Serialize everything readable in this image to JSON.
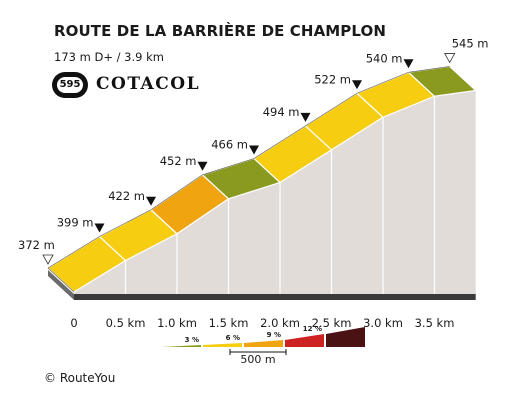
{
  "header": {
    "title": "ROUTE DE LA BARRIÈRE DE CHAMPLON",
    "subtitle": "173 m D+ / 3.9 km"
  },
  "logo": {
    "number": "595",
    "name": "COTACOL"
  },
  "credit": "© RouteYou",
  "colors": {
    "lt3": "#8a9a1f",
    "3to6": "#f6cd11",
    "6to9": "#f0a510",
    "9to12": "#cc2222",
    "gt12": "#4a1212",
    "side": "#e1dcd8",
    "base": "#3a3a3a"
  },
  "chart_data": {
    "type": "area",
    "xunit": "km",
    "yunit": "m",
    "distance_km": 3.9,
    "ascent_m": 173,
    "segments": [
      {
        "from_km": 0.0,
        "to_km": 0.5,
        "grade_class": "3to6"
      },
      {
        "from_km": 0.5,
        "to_km": 1.0,
        "grade_class": "3to6"
      },
      {
        "from_km": 1.0,
        "to_km": 1.5,
        "grade_class": "6to9"
      },
      {
        "from_km": 1.5,
        "to_km": 2.0,
        "grade_class": "lt3"
      },
      {
        "from_km": 2.0,
        "to_km": 2.5,
        "grade_class": "3to6"
      },
      {
        "from_km": 2.5,
        "to_km": 3.0,
        "grade_class": "3to6"
      },
      {
        "from_km": 3.0,
        "to_km": 3.5,
        "grade_class": "3to6"
      },
      {
        "from_km": 3.5,
        "to_km": 3.9,
        "grade_class": "lt3"
      }
    ],
    "elevations": [
      {
        "km": 0.0,
        "alt": 372,
        "label": "372 m",
        "marker": "open"
      },
      {
        "km": 0.5,
        "alt": 399,
        "label": "399 m",
        "marker": "filled"
      },
      {
        "km": 1.0,
        "alt": 422,
        "label": "422 m",
        "marker": "filled"
      },
      {
        "km": 1.5,
        "alt": 452,
        "label": "452 m",
        "marker": "filled"
      },
      {
        "km": 2.0,
        "alt": 466,
        "label": "466 m",
        "marker": "filled"
      },
      {
        "km": 2.5,
        "alt": 494,
        "label": "494 m",
        "marker": "filled"
      },
      {
        "km": 3.0,
        "alt": 522,
        "label": "522 m",
        "marker": "filled"
      },
      {
        "km": 3.5,
        "alt": 540,
        "label": "540 m",
        "marker": "filled"
      },
      {
        "km": 3.9,
        "alt": 545,
        "label": "545 m",
        "marker": "open"
      }
    ],
    "xticks": [
      {
        "km": 0.0,
        "label": "0"
      },
      {
        "km": 0.5,
        "label": "0.5 km"
      },
      {
        "km": 1.0,
        "label": "1.0 km"
      },
      {
        "km": 1.5,
        "label": "1.5 km"
      },
      {
        "km": 2.0,
        "label": "2.0 km"
      },
      {
        "km": 2.5,
        "label": "2.5 km"
      },
      {
        "km": 3.0,
        "label": "3.0 km"
      },
      {
        "km": 3.5,
        "label": "3.5 km"
      }
    ],
    "legend": {
      "items": [
        {
          "label": "3 %",
          "color": "#8a9a1f"
        },
        {
          "label": "6 %",
          "color": "#f6cd11"
        },
        {
          "label": "9 %",
          "color": "#f0a510"
        },
        {
          "label": "12 %",
          "color": "#cc2222"
        },
        {
          "label": "",
          "color": "#4a1212"
        }
      ],
      "scale_label": "500 m",
      "placement": "bottom-right"
    }
  }
}
